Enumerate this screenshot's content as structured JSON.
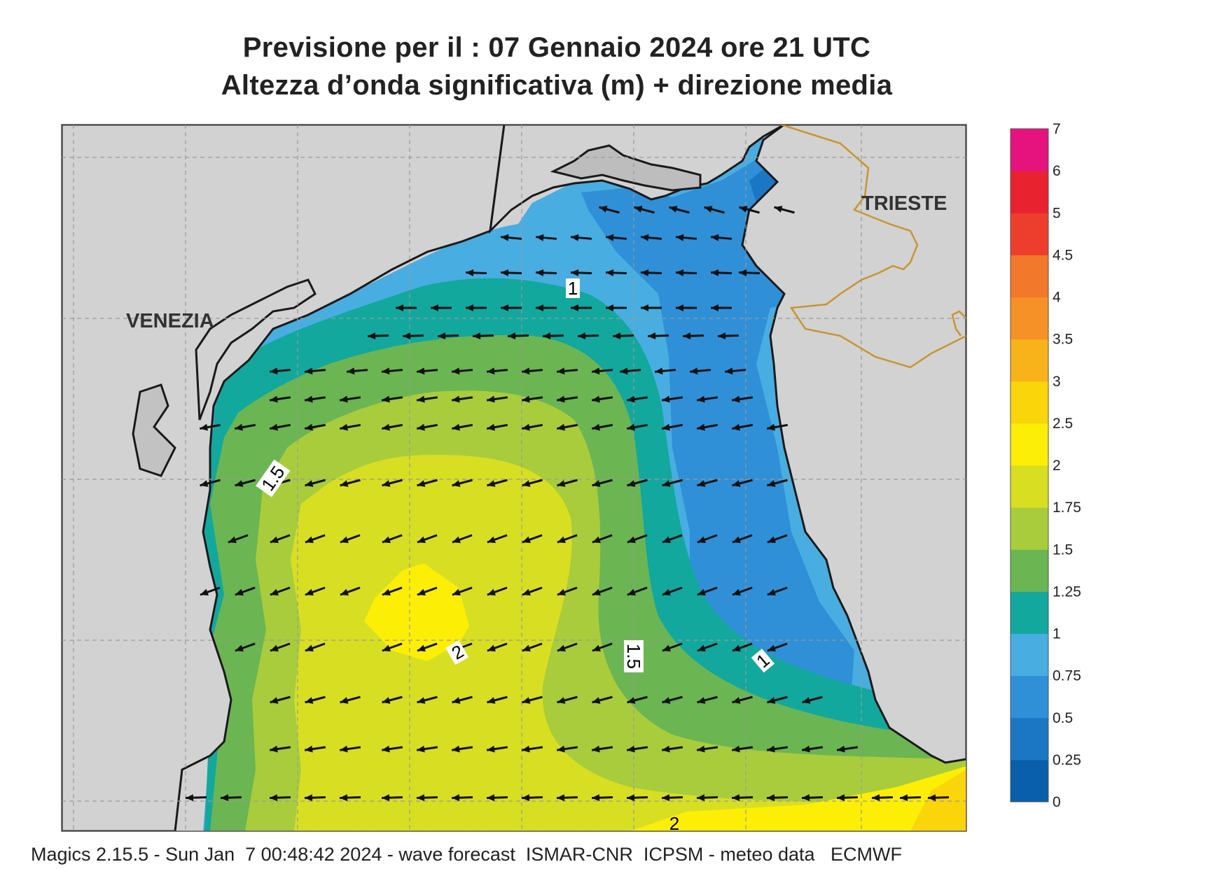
{
  "title": {
    "line1": "Previsione per il  :  07  Gennaio  2024   ore 21 UTC",
    "line2": "Altezza d’onda significativa (m) + direzione media"
  },
  "cities": {
    "venezia": "VENEZIA",
    "trieste": "TRIESTE"
  },
  "contour_labels": [
    "1",
    "1.5",
    "2",
    "1.5",
    "1",
    "2"
  ],
  "colorbar": {
    "ticks": [
      "0",
      "0.25",
      "0.5",
      "0.75",
      "1",
      "1.25",
      "1.5",
      "1.75",
      "2",
      "2.5",
      "3",
      "3.5",
      "4",
      "4.5",
      "5",
      "6",
      "7"
    ],
    "colors": [
      "#0a5fad",
      "#1b77c4",
      "#2f90d8",
      "#48aee2",
      "#12a89e",
      "#6bb552",
      "#a9cc3c",
      "#d8df22",
      "#fcee05",
      "#f9d509",
      "#f7b319",
      "#f69127",
      "#f2792b",
      "#ec3d2d",
      "#e8232f",
      "#e6137e"
    ]
  },
  "legend_colors": {
    "land": "#d2d2d2",
    "coast": "#1a1a1a",
    "border": "#c8962e"
  },
  "footer": "Magics 2.15.5 - Sun Jan  7 00:48:42 2024 - wave forecast  ISMAR-CNR  ICPSM - meteo data   ECMWF"
}
